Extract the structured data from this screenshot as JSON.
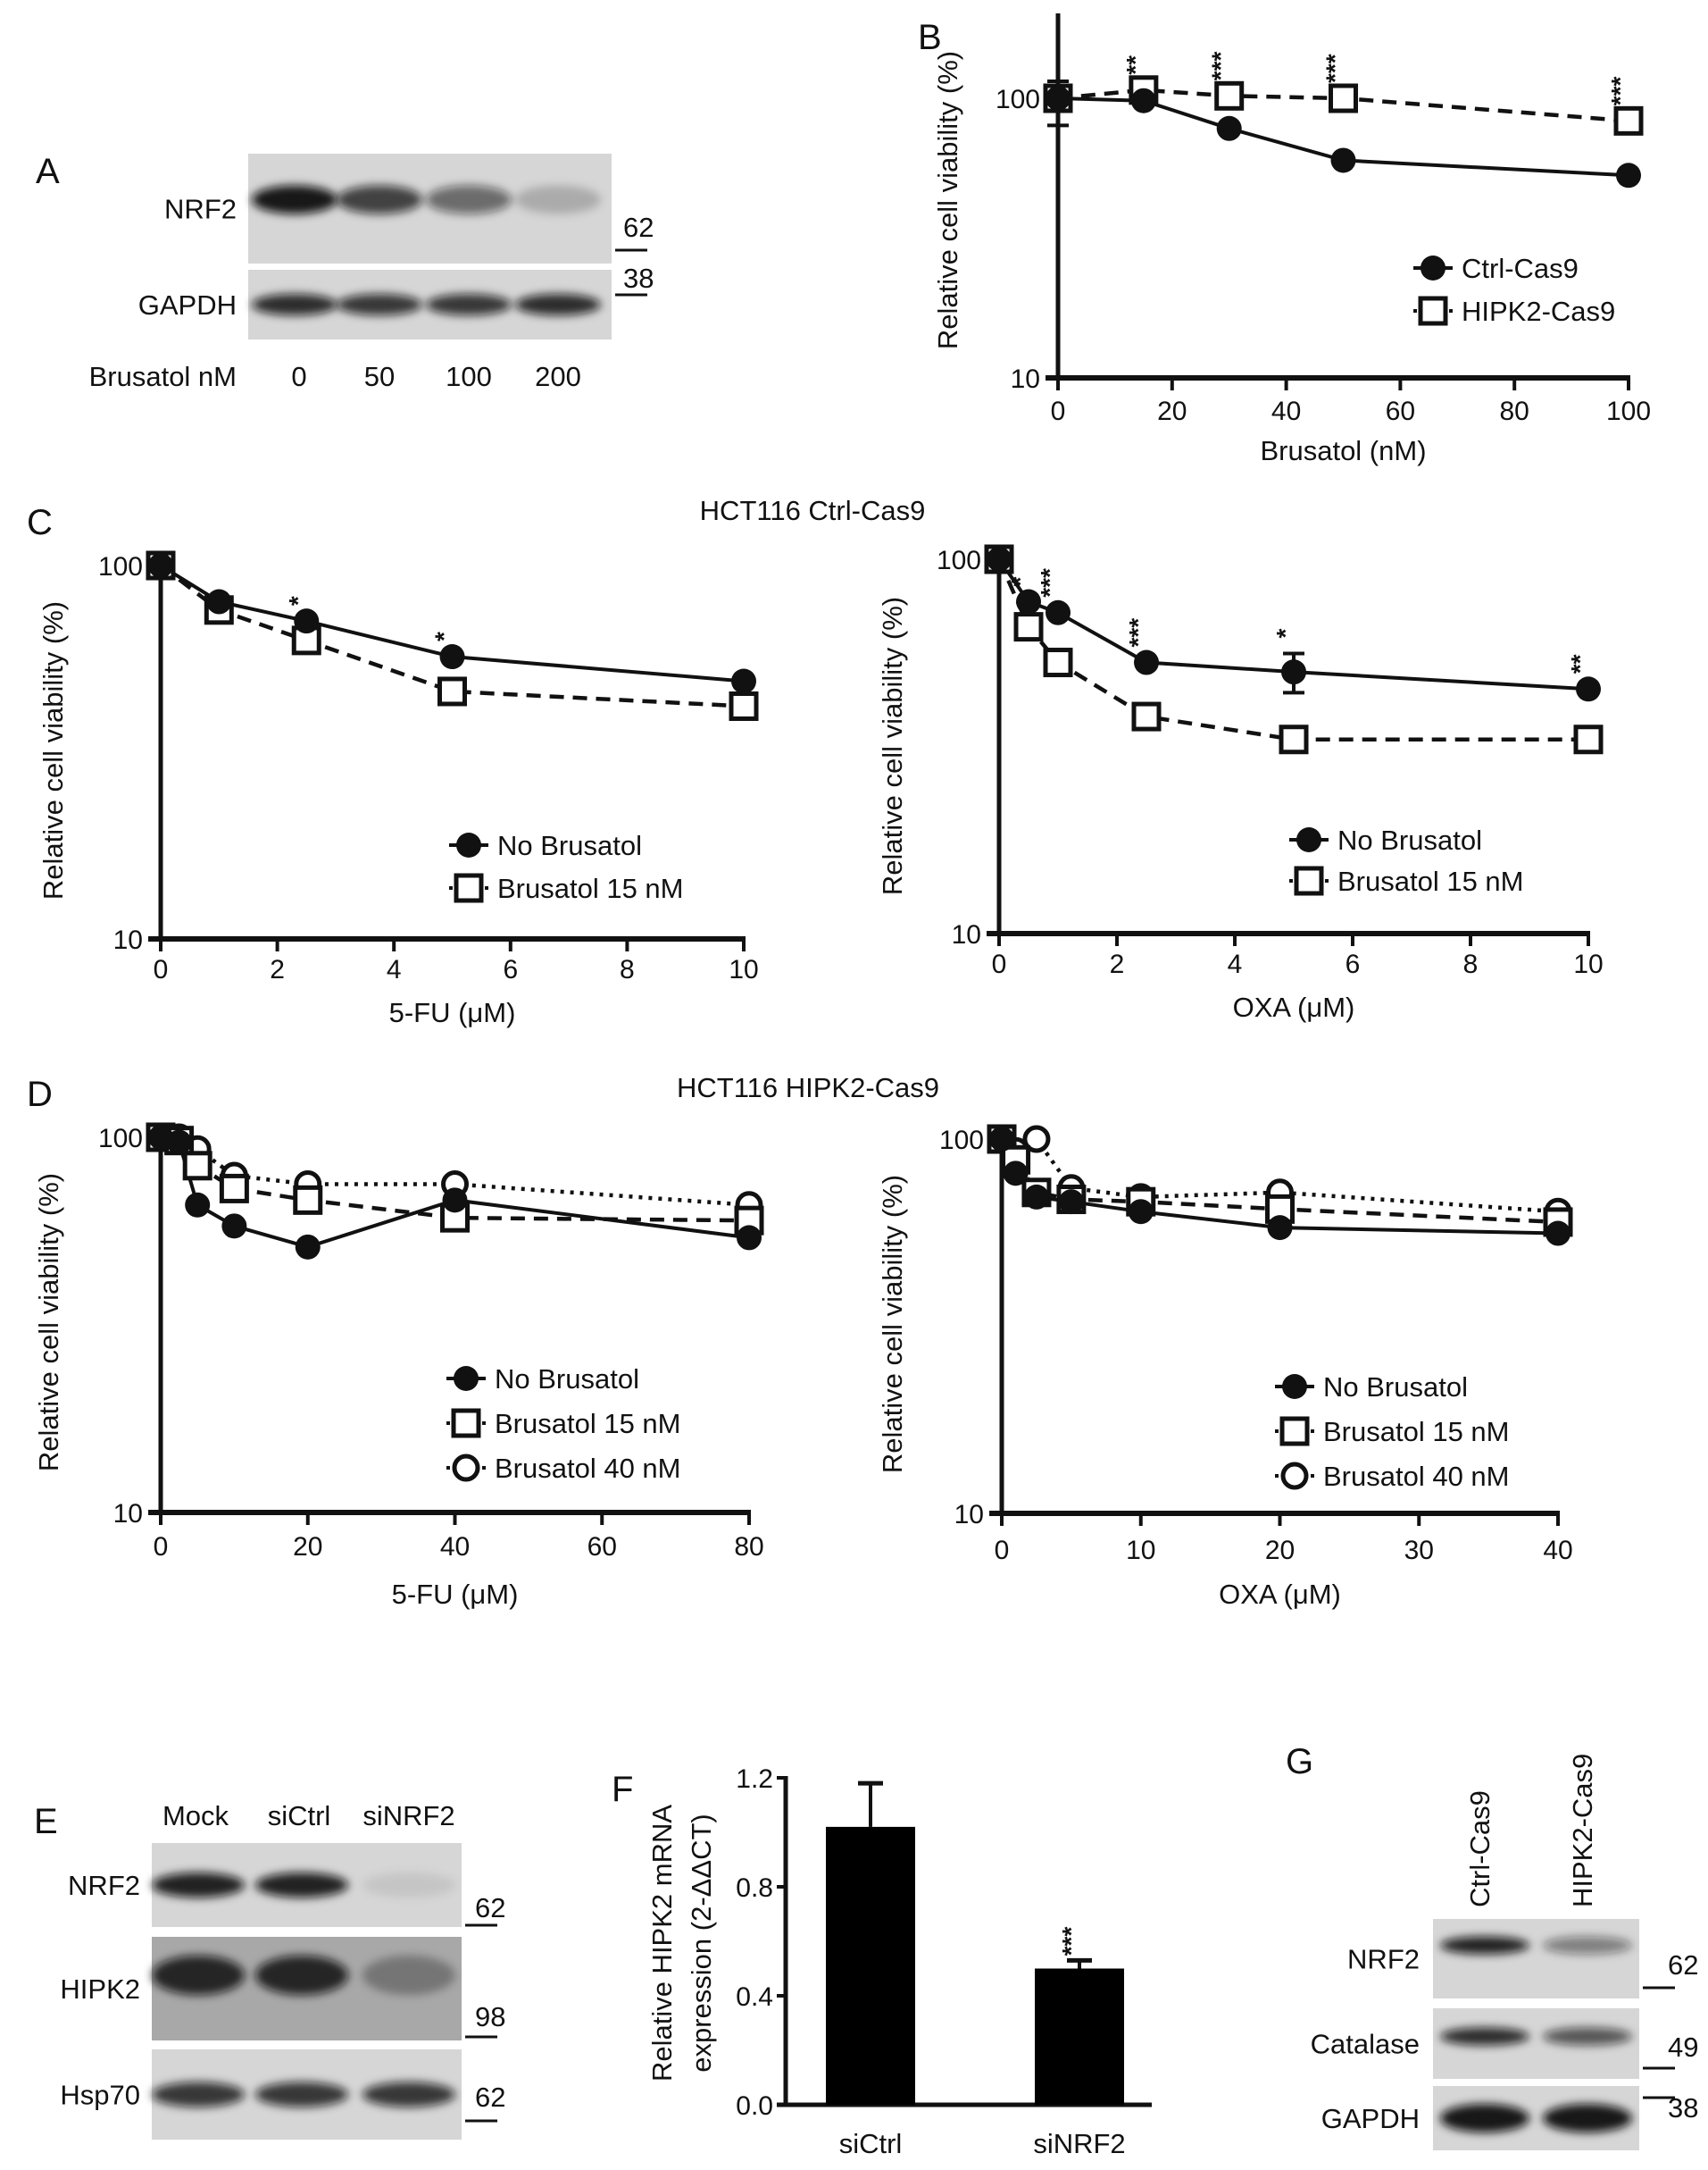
{
  "panels": {
    "A": "A",
    "B": "B",
    "C": "C",
    "D": "D",
    "E": "E",
    "F": "F",
    "G": "G"
  },
  "titles": {
    "C": "HCT116 Ctrl-Cas9",
    "D": "HCT116 HIPK2-Cas9"
  },
  "blot_A": {
    "rows": [
      {
        "label": "NRF2",
        "marker": "62"
      },
      {
        "label": "GAPDH",
        "marker": "38"
      }
    ],
    "treatment_label": "Brusatol nM",
    "lanes": [
      "0",
      "50",
      "100",
      "200"
    ]
  },
  "blot_E": {
    "lanes": [
      "Mock",
      "siCtrl",
      "siNRF2"
    ],
    "rows": [
      {
        "label": "NRF2",
        "marker": "62"
      },
      {
        "label": "HIPK2",
        "marker": "98"
      },
      {
        "label": "Hsp70",
        "marker": "62"
      }
    ]
  },
  "blot_G": {
    "lanes": [
      "Ctrl-Cas9",
      "HIPK2-Cas9"
    ],
    "rows": [
      {
        "label": "NRF2",
        "marker": "62"
      },
      {
        "label": "Catalase",
        "marker": "49"
      },
      {
        "label": "GAPDH",
        "marker": "38"
      }
    ]
  },
  "chart_data": [
    {
      "panel": "B",
      "type": "line",
      "yscale": "log",
      "xlabel": "Brusatol (nM)",
      "ylabel": "Relative cell viability (%)",
      "xlim": [
        0,
        100
      ],
      "ylim": [
        10,
        100
      ],
      "xticks": [
        0,
        20,
        40,
        60,
        80,
        100
      ],
      "yticks": [
        100,
        10
      ],
      "series": [
        {
          "name": "Ctrl-Cas9",
          "marker": "filled-circle",
          "line": "solid",
          "x": [
            0,
            15,
            30,
            50,
            100
          ],
          "y": [
            100,
            98,
            78,
            60,
            53
          ]
        },
        {
          "name": "HIPK2-Cas9",
          "marker": "open-square",
          "line": "dashed",
          "x": [
            0,
            15,
            30,
            50,
            100
          ],
          "y": [
            100,
            107,
            102,
            100,
            83
          ]
        }
      ],
      "error_bars": [
        {
          "series": 1,
          "x": 0,
          "low": 80,
          "high": 115
        }
      ],
      "annotations": [
        {
          "x": 15,
          "text": "**"
        },
        {
          "x": 30,
          "text": "***"
        },
        {
          "x": 50,
          "text": "***"
        },
        {
          "x": 100,
          "text": "***"
        }
      ]
    },
    {
      "panel": "C",
      "type": "line",
      "yscale": "log",
      "xlabel": "5-FU (μM)",
      "ylabel": "Relative cell viability (%)",
      "xlim": [
        0,
        10
      ],
      "ylim": [
        10,
        100
      ],
      "xticks": [
        0,
        2,
        4,
        6,
        8,
        10
      ],
      "yticks": [
        100,
        10
      ],
      "series": [
        {
          "name": "No Brusatol",
          "marker": "filled-circle",
          "line": "solid",
          "x": [
            0,
            1,
            2.5,
            5,
            10
          ],
          "y": [
            100,
            80,
            71,
            57,
            49
          ]
        },
        {
          "name": "Brusatol 15 nM",
          "marker": "open-square",
          "line": "dashed",
          "x": [
            0,
            1,
            2.5,
            5,
            10
          ],
          "y": [
            100,
            76,
            63,
            46,
            42
          ]
        }
      ],
      "error_bars": [],
      "annotations": [
        {
          "x": 2.5,
          "text": "*"
        },
        {
          "x": 5,
          "text": "*"
        }
      ]
    },
    {
      "panel": "C",
      "type": "line",
      "yscale": "log",
      "xlabel": "OXA (μM)",
      "ylabel": "Relative cell viability (%)",
      "xlim": [
        0,
        10
      ],
      "ylim": [
        10,
        100
      ],
      "xticks": [
        0,
        2,
        4,
        6,
        8,
        10
      ],
      "yticks": [
        100,
        10
      ],
      "series": [
        {
          "name": "No Brusatol",
          "marker": "filled-circle",
          "line": "solid",
          "x": [
            0,
            0.5,
            1,
            2.5,
            5,
            10
          ],
          "y": [
            100,
            77,
            72,
            53,
            50,
            45
          ]
        },
        {
          "name": "Brusatol 15 nM",
          "marker": "open-square",
          "line": "dashed",
          "x": [
            0,
            0.5,
            1,
            2.5,
            5,
            10
          ],
          "y": [
            100,
            66,
            53,
            38,
            33,
            33
          ]
        }
      ],
      "error_bars": [
        {
          "series": 0,
          "x": 5,
          "low": 44,
          "high": 56
        }
      ],
      "annotations": [
        {
          "x": 0.5,
          "text": "*"
        },
        {
          "x": 1,
          "text": "***"
        },
        {
          "x": 2.5,
          "text": "***"
        },
        {
          "x": 5,
          "text": "*"
        },
        {
          "x": 10,
          "text": "**"
        }
      ]
    },
    {
      "panel": "D",
      "type": "line",
      "yscale": "log",
      "xlabel": "5-FU (μM)",
      "ylabel": "Relative cell viability (%)",
      "xlim": [
        0,
        80
      ],
      "ylim": [
        10,
        100
      ],
      "xticks": [
        0,
        20,
        40,
        60,
        80
      ],
      "yticks": [
        100,
        10
      ],
      "series": [
        {
          "name": "No Brusatol",
          "marker": "filled-circle",
          "line": "solid",
          "x": [
            0,
            2.5,
            5,
            10,
            20,
            40,
            80
          ],
          "y": [
            100,
            97,
            66,
            58,
            51,
            68,
            54
          ]
        },
        {
          "name": "Brusatol 15 nM",
          "marker": "open-square",
          "line": "dashed",
          "x": [
            0,
            2.5,
            5,
            10,
            20,
            40,
            80
          ],
          "y": [
            100,
            98,
            84,
            73,
            68,
            61,
            60
          ]
        },
        {
          "name": "Brusatol 40 nM",
          "marker": "open-circle",
          "line": "dotted",
          "x": [
            0,
            2.5,
            5,
            10,
            20,
            40,
            80
          ],
          "y": [
            100,
            100,
            93,
            79,
            75,
            75,
            66
          ]
        }
      ],
      "error_bars": [],
      "annotations": []
    },
    {
      "panel": "D",
      "type": "line",
      "yscale": "log",
      "xlabel": "OXA (μM)",
      "ylabel": "Relative cell viability (%)",
      "xlim": [
        0,
        40
      ],
      "ylim": [
        10,
        100
      ],
      "xticks": [
        0,
        10,
        20,
        30,
        40
      ],
      "yticks": [
        100,
        10
      ],
      "series": [
        {
          "name": "No Brusatol",
          "marker": "filled-circle",
          "line": "solid",
          "x": [
            0,
            1,
            2.5,
            5,
            10,
            20,
            40
          ],
          "y": [
            100,
            81,
            70,
            68,
            64,
            58,
            56
          ]
        },
        {
          "name": "Brusatol 15 nM",
          "marker": "open-square",
          "line": "dashed",
          "x": [
            0,
            1,
            2.5,
            5,
            10,
            20,
            40
          ],
          "y": [
            100,
            88,
            72,
            69,
            68,
            65,
            60
          ]
        },
        {
          "name": "Brusatol 40 nM",
          "marker": "open-circle",
          "line": "dotted",
          "x": [
            0,
            1,
            2.5,
            5,
            10,
            20,
            40
          ],
          "y": [
            100,
            93,
            100,
            74,
            70,
            72,
            64
          ]
        }
      ],
      "error_bars": [],
      "annotations": []
    },
    {
      "panel": "F",
      "type": "bar",
      "categories": [
        "siCtrl",
        "siNRF2"
      ],
      "values": [
        1.02,
        0.5
      ],
      "errors": [
        0.16,
        0.03
      ],
      "ylabel_lines": [
        "Relative HIPK2 mRNA",
        "expression (2-ΔΔCT)"
      ],
      "ylim": [
        0,
        1.2
      ],
      "yticks": [
        "0.0",
        "0.4",
        "0.8",
        "1.2"
      ],
      "annotations": [
        {
          "category": "siNRF2",
          "text": "***"
        }
      ]
    }
  ]
}
